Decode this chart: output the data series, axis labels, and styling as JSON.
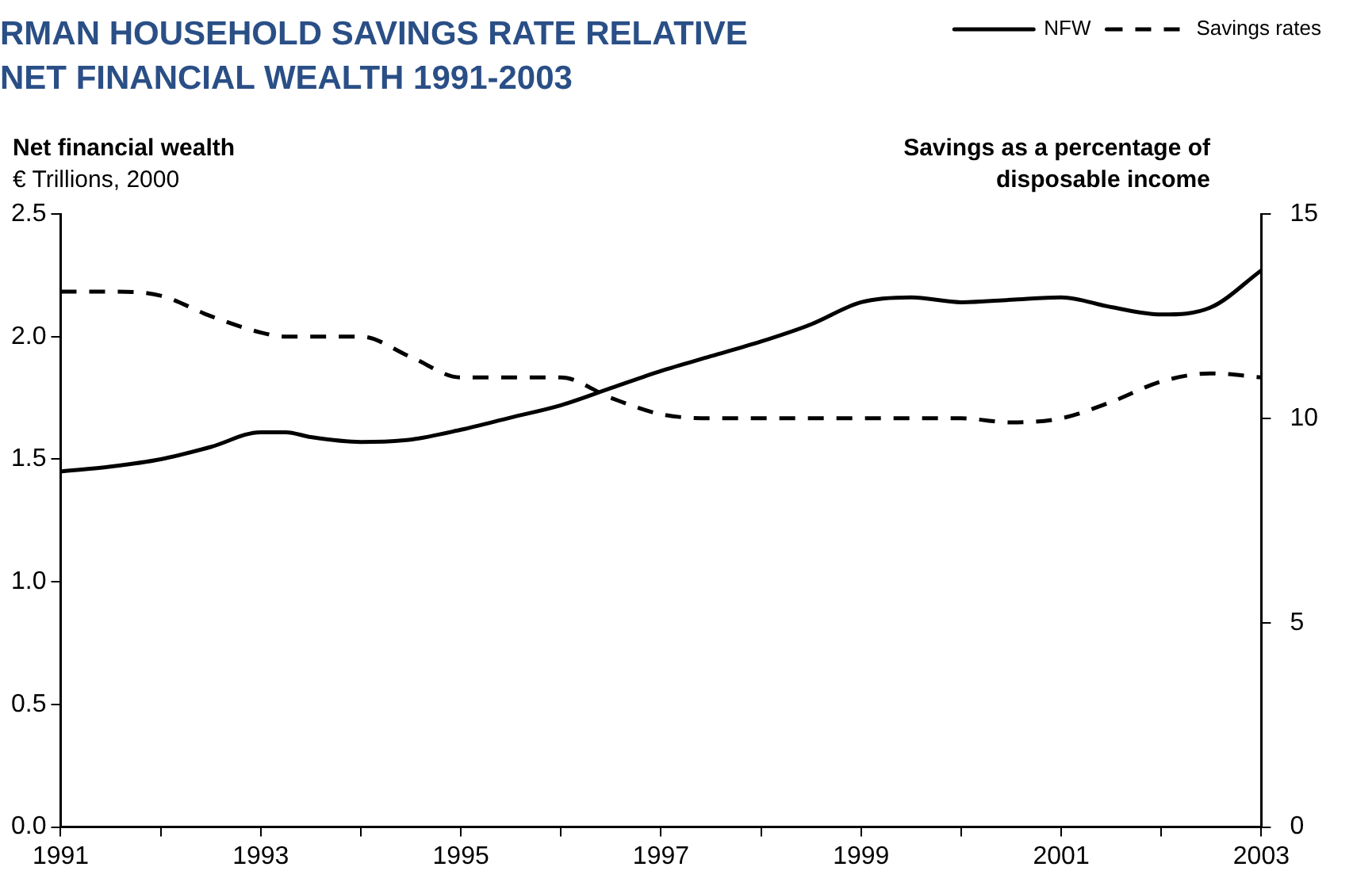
{
  "chart_data": {
    "type": "line",
    "title": "RMAN HOUSEHOLD SAVINGS RATE RELATIVE\nNET FINANCIAL WEALTH 1991-2003",
    "ylabel": "Net financial wealth\n€ Trillions, 2000",
    "y2label": "Savings as a percentage of\ndisposable income",
    "x": [
      1991,
      1991.5,
      1992,
      1992.5,
      1993,
      1993.25,
      1993.5,
      1994,
      1994.5,
      1995,
      1995.5,
      1996,
      1996.5,
      1997,
      1997.5,
      1998,
      1998.5,
      1999,
      1999.5,
      2000,
      2000.5,
      2001,
      2001.5,
      2002,
      2002.5,
      2003
    ],
    "series": [
      {
        "name": "NFW",
        "color": "#000000",
        "line_style": "solid",
        "values": [
          1.45,
          1.47,
          1.5,
          1.55,
          1.61,
          1.61,
          1.59,
          1.57,
          1.58,
          1.62,
          1.67,
          1.72,
          1.79,
          1.86,
          1.92,
          1.98,
          2.05,
          2.14,
          2.16,
          2.14,
          2.15,
          2.16,
          2.12,
          2.09,
          2.12,
          2.27
        ]
      },
      {
        "name": "Savings rates",
        "color": "#000000",
        "line_style": "dashed",
        "axis": "y2",
        "values": [
          13.1,
          13.1,
          13.0,
          12.5,
          12.1,
          12.0,
          12.0,
          12.0,
          11.5,
          11.0,
          11.0,
          11.0,
          10.5,
          10.1,
          10.0,
          10.0,
          10.0,
          10.0,
          10.0,
          10.0,
          9.9,
          10.0,
          10.4,
          10.9,
          11.1,
          11.0
        ]
      }
    ],
    "xlim": [
      1991,
      2003
    ],
    "xticks": [
      1991,
      {
        "value": 1992,
        "label": null
      },
      1993,
      {
        "value": 1994,
        "label": null
      },
      1995,
      {
        "value": 1996,
        "label": null
      },
      1997,
      {
        "value": 1998,
        "label": null
      },
      1999,
      {
        "value": 2000,
        "label": null
      },
      2001,
      {
        "value": 2002,
        "label": null
      },
      2003
    ],
    "ylim": [
      0,
      2.5
    ],
    "yticks": [
      {
        "value": 0,
        "label": "0.0"
      },
      {
        "value": 0.5,
        "label": "0.5"
      },
      {
        "value": 1,
        "label": "1.0"
      },
      {
        "value": 1.5,
        "label": "1.5"
      },
      {
        "value": 2,
        "label": "2.0"
      },
      {
        "value": 2.5,
        "label": "2.5"
      }
    ],
    "y2lim": [
      0,
      15
    ],
    "y2ticks": [
      0,
      5,
      10,
      15
    ],
    "grid": false,
    "legend": "top right",
    "marker": "none"
  }
}
